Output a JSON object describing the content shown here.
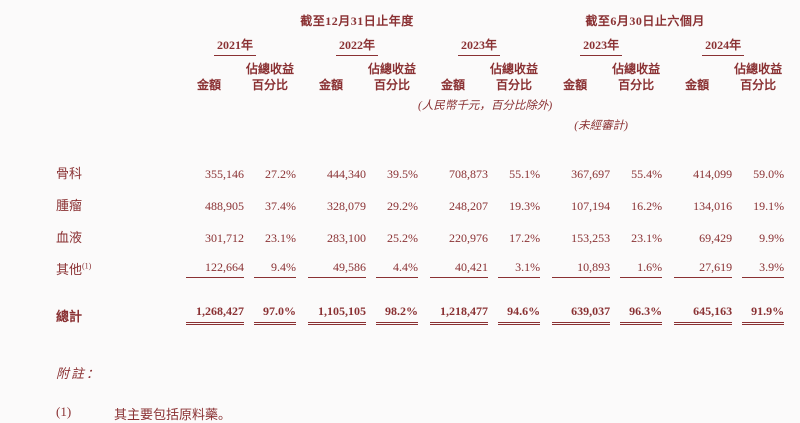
{
  "table": {
    "group_headers": [
      {
        "label": "截至12月31日止年度"
      },
      {
        "label": "截至6月30日止六個月"
      }
    ],
    "years": [
      "2021年",
      "2022年",
      "2023年",
      "2023年",
      "2024年"
    ],
    "subheaders": {
      "amount": "金額",
      "pct_line1": "佔總收益",
      "pct_line2": "百分比"
    },
    "inline_notes": {
      "currency": "(人民幣千元，百分比除外)",
      "unaudited": "(未經審計)"
    },
    "rows": [
      {
        "label": "骨科",
        "footnote_ref": "",
        "values": [
          "355,146",
          "27.2%",
          "444,340",
          "39.5%",
          "708,873",
          "55.1%",
          "367,697",
          "55.4%",
          "414,099",
          "59.0%"
        ]
      },
      {
        "label": "腫瘤",
        "footnote_ref": "",
        "values": [
          "488,905",
          "37.4%",
          "328,079",
          "29.2%",
          "248,207",
          "19.3%",
          "107,194",
          "16.2%",
          "134,016",
          "19.1%"
        ]
      },
      {
        "label": "血液",
        "footnote_ref": "",
        "values": [
          "301,712",
          "23.1%",
          "283,100",
          "25.2%",
          "220,976",
          "17.2%",
          "153,253",
          "23.1%",
          "69,429",
          "9.9%"
        ]
      },
      {
        "label": "其他",
        "footnote_ref": "(1)",
        "values": [
          "122,664",
          "9.4%",
          "49,586",
          "4.4%",
          "40,421",
          "3.1%",
          "10,893",
          "1.6%",
          "27,619",
          "3.9%"
        ]
      }
    ],
    "total_row": {
      "label": "總計",
      "values": [
        "1,268,427",
        "97.0%",
        "1,105,105",
        "98.2%",
        "1,218,477",
        "94.6%",
        "639,037",
        "96.3%",
        "645,163",
        "91.9%"
      ]
    }
  },
  "footnotes": {
    "header": "附註：",
    "items": [
      {
        "marker": "(1)",
        "text": "其主要包括原料藥。"
      }
    ]
  },
  "colors": {
    "text": "#8a3133",
    "background": "#fbfafa"
  }
}
